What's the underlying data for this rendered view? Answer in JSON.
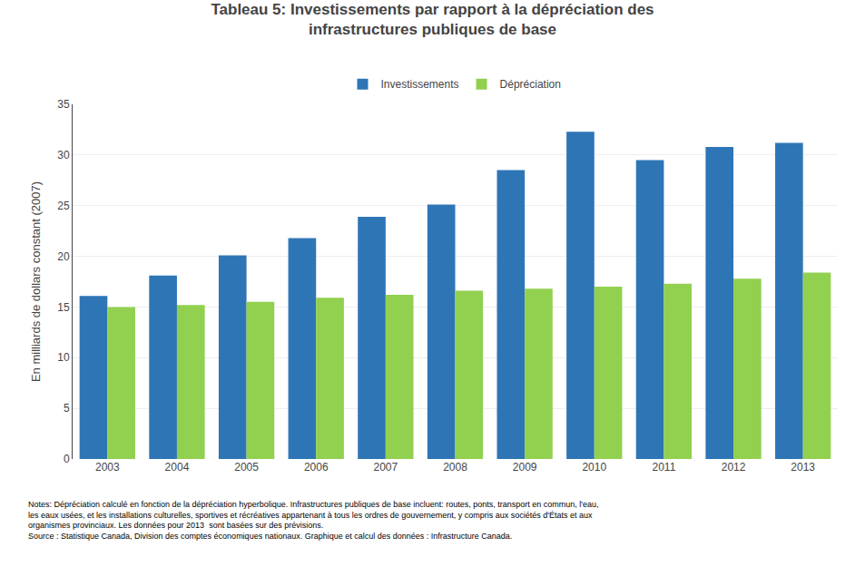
{
  "chart_data": {
    "type": "bar",
    "title": "Tableau 5: Investissements par rapport à la dépréciation des\ninfrastructures publiques de base",
    "ylabel": "En milliards de dollars constant (2007)",
    "categories": [
      "2003",
      "2004",
      "2005",
      "2006",
      "2007",
      "2008",
      "2009",
      "2010",
      "2011",
      "2012",
      "2013"
    ],
    "series": [
      {
        "name": "Investissements",
        "color": "#2E75B6",
        "values": [
          16.1,
          18.1,
          20.1,
          21.8,
          23.9,
          25.1,
          28.5,
          32.3,
          29.5,
          30.8,
          31.2
        ]
      },
      {
        "name": "Dépréciation",
        "color": "#92D050",
        "values": [
          15.0,
          15.2,
          15.5,
          15.9,
          16.2,
          16.6,
          16.8,
          17.0,
          17.3,
          17.8,
          18.4
        ]
      }
    ],
    "ylim": [
      0,
      35
    ],
    "yticks": [
      0,
      5,
      10,
      15,
      20,
      25,
      30,
      35
    ],
    "grid": true,
    "legend": "top",
    "annotations": [
      "Notes: Dépréciation calculé en fonction de la dépréciation hyperbolique. Infrastructures publiques de base incluent: routes, ponts, transport en commun, l'eau,",
      "les eaux usées, et les installations culturelles, sportives et récréatives appartenant à tous les ordres de gouvernement, y compris aux sociétés d'États et aux",
      "organismes provinciaux. Les données pour 2013  sont basées sur des prévisions.",
      "Source : Statistique Canada, Division des comptes économiques nationaux. Graphique et calcul des données : Infrastructure Canada."
    ]
  }
}
